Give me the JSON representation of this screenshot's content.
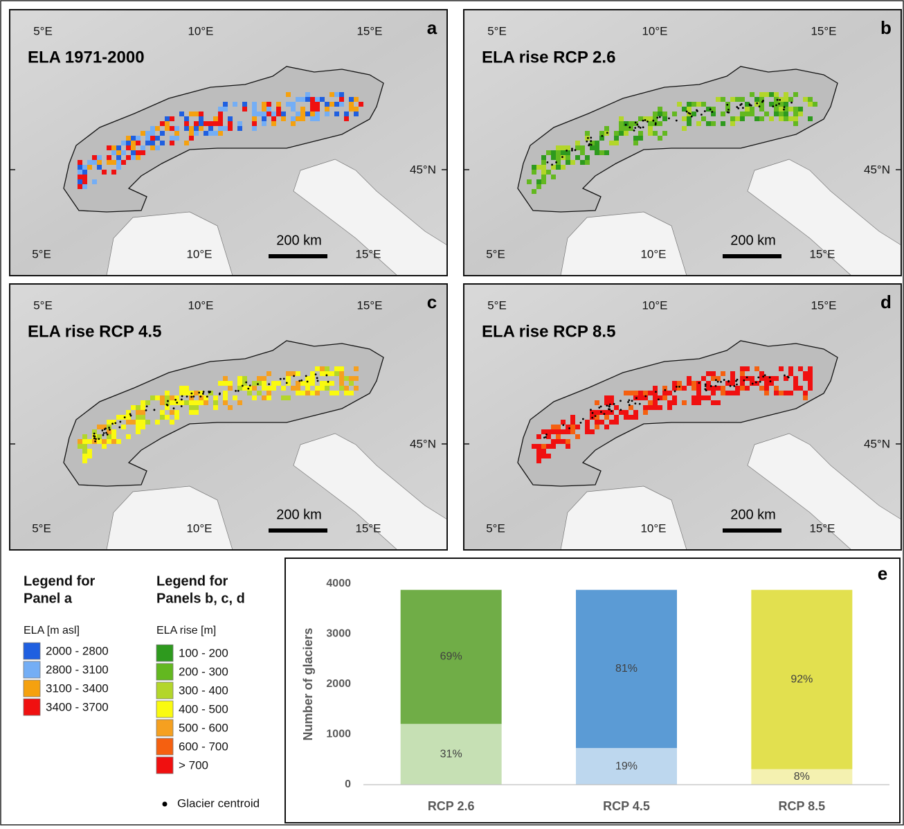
{
  "maps": [
    {
      "letter": "a",
      "title": "ELA 1971-2000",
      "lon_labels_top": [
        "5°E",
        "10°E",
        "15°E"
      ],
      "lon_labels_bottom": [
        "5°E",
        "10°E",
        "15°E"
      ],
      "lat_label": "45°N",
      "scale_label": "200 km"
    },
    {
      "letter": "b",
      "title": "ELA rise RCP 2.6",
      "lon_labels_top": [
        "5°E",
        "10°E",
        "15°E"
      ],
      "lon_labels_bottom": [
        "5°E",
        "10°E",
        "15°E"
      ],
      "lat_label": "45°N",
      "scale_label": "200 km"
    },
    {
      "letter": "c",
      "title": "ELA rise RCP 4.5",
      "lon_labels_top": [
        "5°E",
        "10°E",
        "15°E"
      ],
      "lon_labels_bottom": [
        "5°E",
        "10°E",
        "15°E"
      ],
      "lat_label": "45°N",
      "scale_label": "200 km"
    },
    {
      "letter": "d",
      "title": "ELA rise RCP 8.5",
      "lon_labels_top": [
        "5°E",
        "10°E",
        "15°E"
      ],
      "lon_labels_bottom": [
        "5°E",
        "10°E",
        "15°E"
      ],
      "lat_label": "45°N",
      "scale_label": "200 km"
    }
  ],
  "legend_a": {
    "heading": [
      "Legend for",
      "Panel a"
    ],
    "subtitle": "ELA [m asl]",
    "items": [
      {
        "label": "2000 - 2800",
        "color": "#1f5fe0"
      },
      {
        "label": "2800 - 3100",
        "color": "#74aef5"
      },
      {
        "label": "3100 - 3400",
        "color": "#f5a10f"
      },
      {
        "label": "3400 - 3700",
        "color": "#f01010"
      }
    ]
  },
  "legend_bcd": {
    "heading": [
      "Legend for",
      "Panels b, c, d"
    ],
    "subtitle": "ELA rise [m]",
    "items": [
      {
        "label": "100 - 200",
        "color": "#2e9a1e"
      },
      {
        "label": "200 - 300",
        "color": "#63b820"
      },
      {
        "label": "300 - 400",
        "color": "#b3d62a"
      },
      {
        "label": "400 - 500",
        "color": "#fafa10"
      },
      {
        "label": "500 - 600",
        "color": "#f5a020"
      },
      {
        "label": "600 - 700",
        "color": "#f56010"
      },
      {
        "label": "> 700",
        "color": "#f01010"
      }
    ],
    "centroid_label": "Glacier centroid"
  },
  "chart_data": {
    "type": "stacked_bar",
    "panel_letter": "e",
    "y_label": "Number of glaciers",
    "categories": [
      "RCP 2.6",
      "RCP 4.5",
      "RCP 8.5"
    ],
    "series": [
      {
        "colors": [
          "#c6e0b4",
          "#bdd7ee",
          "#f4f1b0"
        ],
        "values": [
          1210,
          730,
          310
        ],
        "share_labels": [
          "31%",
          "19%",
          "8%"
        ]
      },
      {
        "colors": [
          "#70ad47",
          "#5b9bd5",
          "#e2e04f"
        ],
        "values": [
          2670,
          3150,
          3570
        ],
        "share_labels": [
          "69%",
          "81%",
          "92%"
        ]
      }
    ],
    "ylim": [
      0,
      4000
    ],
    "yticks": [
      0,
      1000,
      2000,
      3000,
      4000
    ],
    "grid": false
  }
}
